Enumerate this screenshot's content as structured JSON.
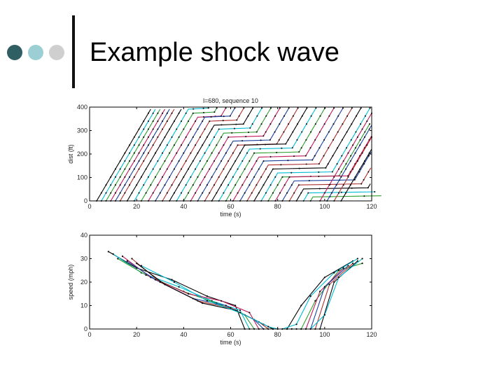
{
  "slide": {
    "title": "Example shock wave",
    "bullet_colors": [
      "#2f5f63",
      "#9ccfd3",
      "#cfcfcf"
    ]
  },
  "chart_data": [
    {
      "type": "line",
      "title": "l=680, sequence 10",
      "xlabel": "time (s)",
      "ylabel": "dist (ft)",
      "xlim": [
        0,
        120
      ],
      "ylim": [
        0,
        400
      ],
      "xticks": [
        0,
        20,
        40,
        60,
        80,
        100,
        120
      ],
      "yticks": [
        0,
        100,
        200,
        300,
        400
      ],
      "grid": false,
      "series_colors": [
        "#000000",
        "#00bcd4",
        "#2e9e2e",
        "#c2185b",
        "#1a3fa0",
        "#b03030"
      ],
      "trajectories": [
        {
          "start_time": 3,
          "stop_dist": null
        },
        {
          "start_time": 5,
          "stop_dist": null
        },
        {
          "start_time": 7,
          "stop_dist": null
        },
        {
          "start_time": 9,
          "stop_dist": null
        },
        {
          "start_time": 11,
          "stop_dist": null
        },
        {
          "start_time": 13,
          "stop_dist": null
        },
        {
          "start_time": 16,
          "stop_dist": 400
        },
        {
          "start_time": 19,
          "stop_dist": 390
        },
        {
          "start_time": 22,
          "stop_dist": 380
        },
        {
          "start_time": 25,
          "stop_dist": 365
        },
        {
          "start_time": 28,
          "stop_dist": 350
        },
        {
          "start_time": 31,
          "stop_dist": 335
        },
        {
          "start_time": 34,
          "stop_dist": 320
        },
        {
          "start_time": 37,
          "stop_dist": 305
        },
        {
          "start_time": 40,
          "stop_dist": 290
        },
        {
          "start_time": 43,
          "stop_dist": 275
        },
        {
          "start_time": 46,
          "stop_dist": 260
        },
        {
          "start_time": 49,
          "stop_dist": 245
        },
        {
          "start_time": 52,
          "stop_dist": 230
        },
        {
          "start_time": 55,
          "stop_dist": 215
        },
        {
          "start_time": 58,
          "stop_dist": 200
        },
        {
          "start_time": 61,
          "stop_dist": 185
        },
        {
          "start_time": 64,
          "stop_dist": 170
        },
        {
          "start_time": 67,
          "stop_dist": 155
        },
        {
          "start_time": 70,
          "stop_dist": 140
        },
        {
          "start_time": 73,
          "stop_dist": 125
        },
        {
          "start_time": 76,
          "stop_dist": 110
        },
        {
          "start_time": 79,
          "stop_dist": 95
        },
        {
          "start_time": 82,
          "stop_dist": 80
        },
        {
          "start_time": 85,
          "stop_dist": 65
        },
        {
          "start_time": 88,
          "stop_dist": 50
        },
        {
          "start_time": 91,
          "stop_dist": 35
        },
        {
          "start_time": 94,
          "stop_dist": 20
        },
        {
          "start_time": 98,
          "stop_dist": null
        },
        {
          "start_time": 101,
          "stop_dist": null
        },
        {
          "start_time": 104,
          "stop_dist": null
        },
        {
          "start_time": 107,
          "stop_dist": null
        }
      ]
    },
    {
      "type": "line",
      "title": "",
      "xlabel": "time (s)",
      "ylabel": "speed (mph)",
      "xlim": [
        0,
        120
      ],
      "ylim": [
        0,
        40
      ],
      "xticks": [
        0,
        20,
        40,
        60,
        80,
        100,
        120
      ],
      "yticks": [
        0,
        10,
        20,
        30,
        40
      ],
      "grid": false,
      "series_colors": [
        "#000000",
        "#00bcd4",
        "#2e9e2e",
        "#c2185b",
        "#1a3fa0",
        "#b03030"
      ],
      "profiles": [
        {
          "points": [
            [
              8,
              33
            ],
            [
              20,
              26
            ],
            [
              35,
              21
            ],
            [
              50,
              14
            ],
            [
              62,
              10
            ],
            [
              66,
              0
            ],
            [
              78,
              0
            ],
            [
              84,
              0
            ],
            [
              90,
              10
            ],
            [
              100,
              22
            ],
            [
              112,
              29
            ]
          ]
        },
        {
          "points": [
            [
              10,
              32
            ],
            [
              22,
              24
            ],
            [
              38,
              18
            ],
            [
              52,
              12
            ],
            [
              64,
              8
            ],
            [
              68,
              0
            ],
            [
              82,
              0
            ],
            [
              88,
              2
            ],
            [
              94,
              14
            ],
            [
              104,
              24
            ],
            [
              114,
              30
            ]
          ]
        },
        {
          "points": [
            [
              12,
              30
            ],
            [
              24,
              23
            ],
            [
              40,
              16
            ],
            [
              54,
              11
            ],
            [
              66,
              6
            ],
            [
              70,
              0
            ],
            [
              84,
              0
            ],
            [
              90,
              0
            ],
            [
              96,
              12
            ],
            [
              106,
              25
            ],
            [
              116,
              28
            ]
          ]
        },
        {
          "points": [
            [
              14,
              31
            ],
            [
              26,
              22
            ],
            [
              42,
              15
            ],
            [
              56,
              12
            ],
            [
              68,
              7
            ],
            [
              72,
              0
            ],
            [
              86,
              0
            ],
            [
              92,
              0
            ],
            [
              98,
              16
            ],
            [
              108,
              26
            ]
          ]
        },
        {
          "points": [
            [
              16,
              29
            ],
            [
              28,
              21
            ],
            [
              44,
              13
            ],
            [
              58,
              10
            ],
            [
              70,
              4
            ],
            [
              74,
              0
            ],
            [
              88,
              0
            ],
            [
              94,
              0
            ],
            [
              100,
              18
            ],
            [
              110,
              27
            ]
          ]
        },
        {
          "points": [
            [
              18,
              30
            ],
            [
              30,
              20
            ],
            [
              46,
              12
            ],
            [
              60,
              9
            ],
            [
              72,
              3
            ],
            [
              76,
              0
            ],
            [
              90,
              0
            ],
            [
              96,
              0
            ],
            [
              102,
              19
            ],
            [
              112,
              28
            ]
          ]
        },
        {
          "points": [
            [
              20,
              28
            ],
            [
              32,
              19
            ],
            [
              48,
              11
            ],
            [
              62,
              8
            ],
            [
              74,
              2
            ],
            [
              78,
              0
            ],
            [
              92,
              0
            ],
            [
              98,
              0
            ],
            [
              104,
              20
            ],
            [
              114,
              29
            ]
          ]
        },
        {
          "points": [
            [
              22,
              27
            ],
            [
              36,
              20
            ],
            [
              50,
              12
            ],
            [
              64,
              7
            ],
            [
              76,
              1
            ],
            [
              80,
              0
            ],
            [
              94,
              0
            ],
            [
              100,
              6
            ],
            [
              106,
              22
            ],
            [
              116,
              30
            ]
          ]
        }
      ]
    }
  ]
}
